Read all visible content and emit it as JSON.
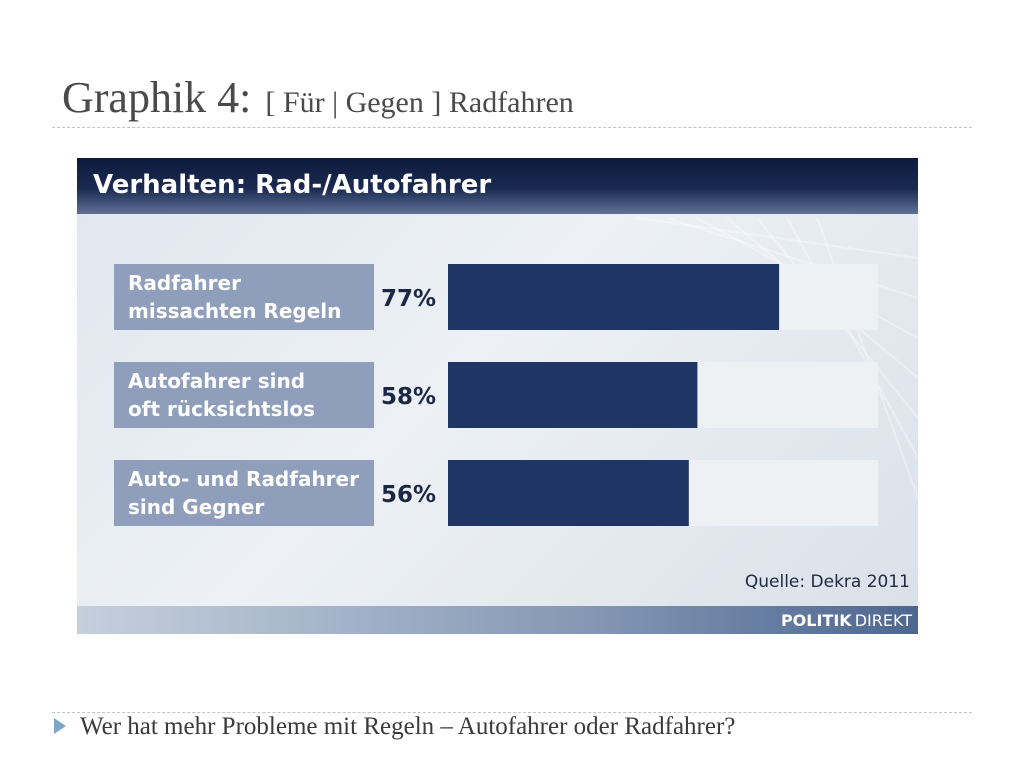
{
  "slide": {
    "title": "Graphik 4:",
    "subtitle": "[ Für | Gegen ]  Radfahren",
    "bullet": "Wer hat mehr Probleme mit Regeln – Autofahrer oder Radfahrer?"
  },
  "colors": {
    "bar": "#1f3563",
    "track": "#eef1f4",
    "label_bg": "#8e9ebb",
    "header": "#13224a"
  },
  "chart_data": {
    "type": "bar",
    "orientation": "horizontal",
    "title": "Verhalten: Rad-/Autofahrer",
    "categories": [
      [
        "Radfahrer",
        "missachten Regeln"
      ],
      [
        "Autofahrer sind",
        "oft rücksichtslos"
      ],
      [
        "Auto- und Radfahrer",
        "sind Gegner"
      ]
    ],
    "values": [
      77,
      58,
      56
    ],
    "value_labels": [
      "77%",
      "58%",
      "56%"
    ],
    "xlim": [
      0,
      100
    ],
    "source": "Quelle: Dekra 2011",
    "brand": [
      "POLITIK",
      "DIREKT"
    ]
  }
}
